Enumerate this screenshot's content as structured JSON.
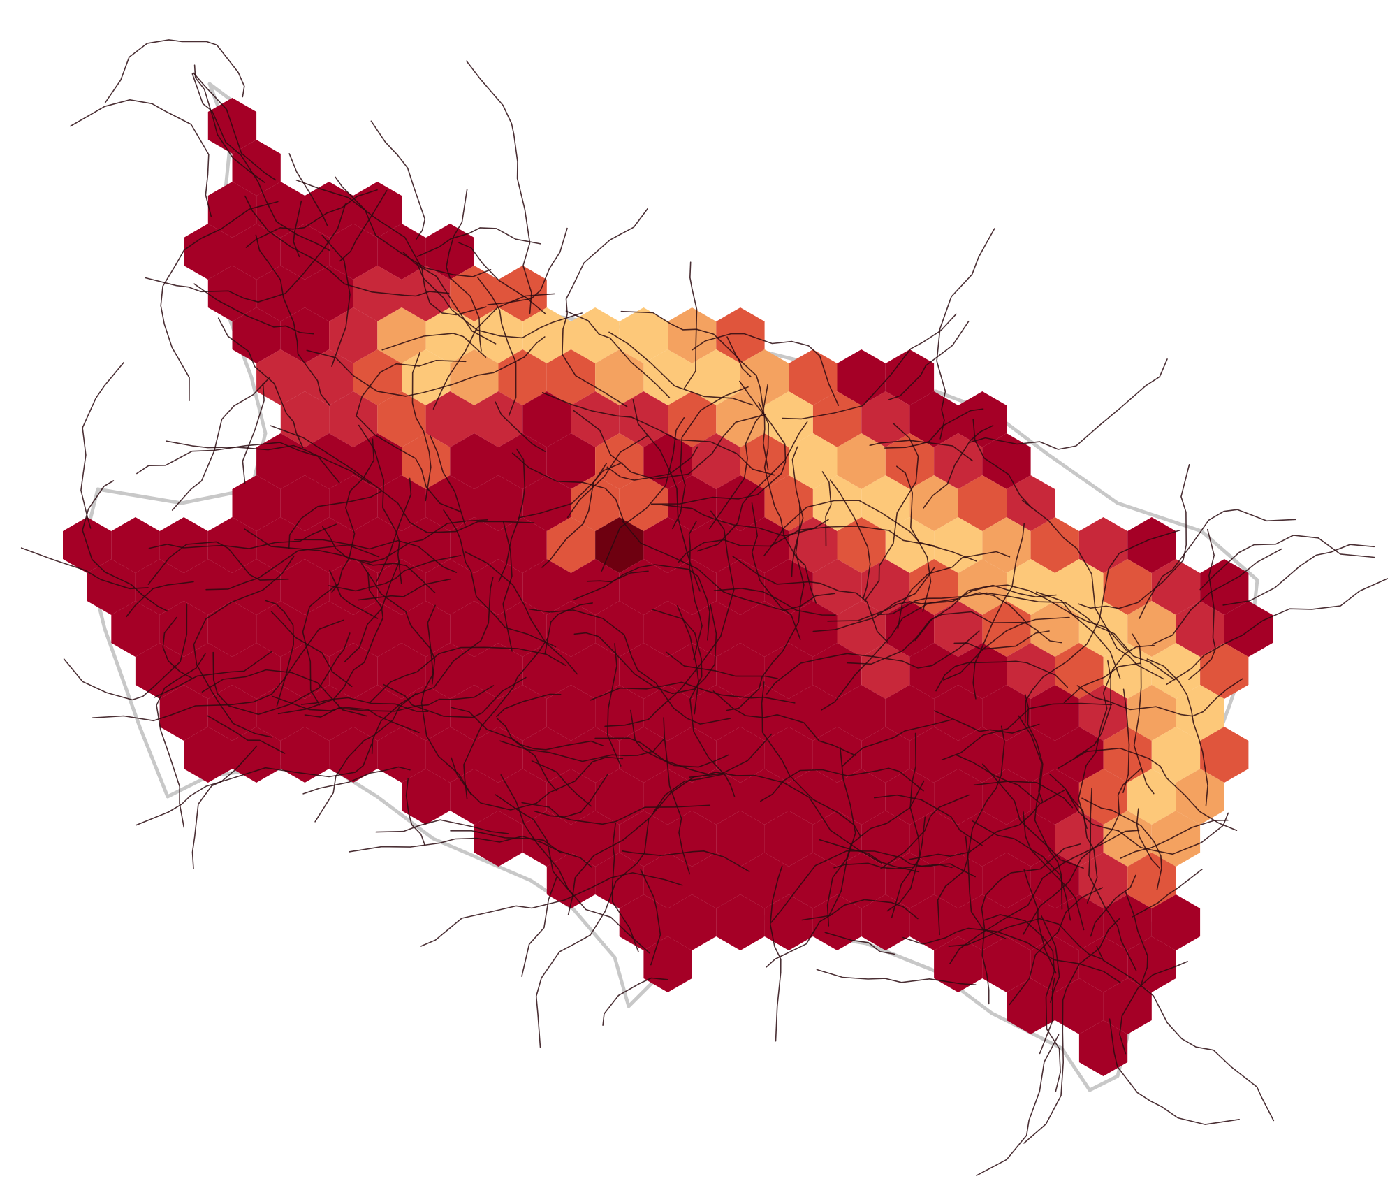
{
  "map": {
    "type": "hexbin-density",
    "colors": {
      "base": "#a50026",
      "low": "#c8283a",
      "mid": "#e0553c",
      "high": "#f4a260",
      "peak": "#fdc879",
      "max": "#6e0010",
      "road": "#2a0a10",
      "coast": "#9a9a9a"
    },
    "density_levels": [
      "base",
      "low",
      "mid",
      "high",
      "peak",
      "max"
    ]
  }
}
